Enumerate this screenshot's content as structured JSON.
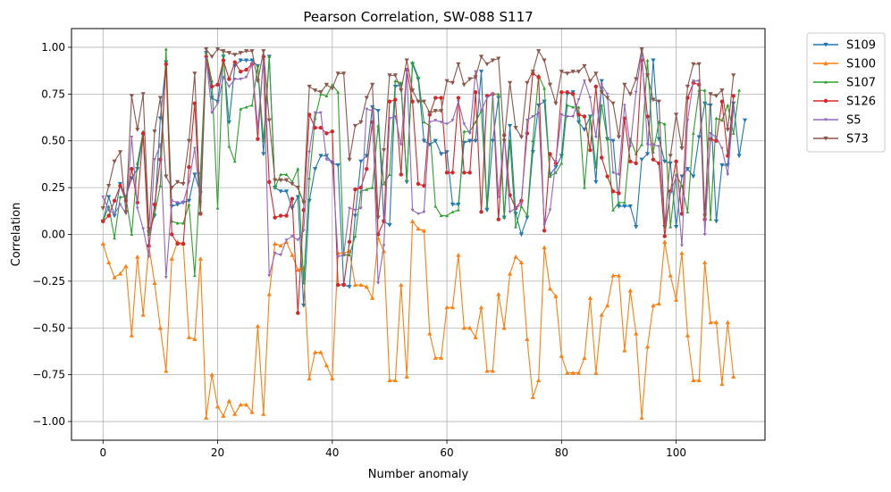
{
  "chart_data": {
    "type": "line",
    "title": "Pearson Correlation, SW-088  S117",
    "xlabel": "Number anomaly",
    "ylabel": "Correlation",
    "xlim": [
      -5.5,
      115.5
    ],
    "ylim": [
      -1.1,
      1.1
    ],
    "xticks": [
      0,
      20,
      40,
      60,
      80,
      100
    ],
    "yticks": [
      -1.0,
      -0.75,
      -0.5,
      -0.25,
      0.0,
      0.25,
      0.5,
      0.75,
      1.0
    ],
    "xtick_labels": [
      "0",
      "20",
      "40",
      "60",
      "80",
      "100"
    ],
    "ytick_labels": [
      "−1.00",
      "−0.75",
      "−0.50",
      "−0.25",
      "0.00",
      "0.25",
      "0.50",
      "0.75",
      "1.00"
    ],
    "grid": true,
    "legend_position": "outside-top-right",
    "series": [
      {
        "name": "S109",
        "color": "#1f77b4",
        "marker": "triangle-down",
        "values": [
          0.07,
          0.2,
          0.1,
          0.27,
          0.2,
          0.3,
          0.35,
          0.53,
          0.01,
          0.1,
          0.62,
          0.92,
          0.15,
          0.16,
          0.17,
          0.18,
          0.32,
          0.22,
          0.97,
          0.73,
          0.71,
          0.95,
          0.6,
          0.9,
          0.93,
          0.93,
          0.93,
          0.9,
          0.43,
          0.95,
          0.25,
          0.23,
          0.23,
          0.14,
          0.2,
          -0.38,
          0.18,
          0.35,
          0.42,
          0.42,
          0.38,
          0.37,
          -0.27,
          -0.28,
          0.1,
          0.39,
          0.42,
          0.68,
          0.66,
          0.07,
          0.05,
          0.79,
          0.8,
          0.28,
          0.91,
          0.83,
          0.5,
          0.48,
          0.5,
          0.43,
          0.44,
          0.16,
          0.16,
          0.49,
          0.5,
          0.5,
          0.87,
          0.13,
          0.5,
          0.73,
          0.09,
          0.58,
          0.11,
          0.0,
          0.09,
          0.44,
          0.69,
          0.71,
          0.32,
          0.36,
          0.42,
          0.75,
          0.76,
          0.6,
          0.56,
          0.63,
          0.28,
          0.82,
          0.51,
          0.5,
          0.15,
          0.15,
          0.15,
          0.04,
          0.4,
          0.43,
          0.93,
          0.51,
          0.39,
          0.38,
          0.04,
          0.31,
          0.35,
          0.31,
          0.52,
          0.7,
          0.69,
          0.07,
          0.37,
          0.37,
          0.7,
          0.42,
          0.61
        ]
      },
      {
        "name": "S100",
        "color": "#ff7f0e",
        "marker": "triangle-up",
        "values": [
          -0.05,
          -0.15,
          -0.23,
          -0.21,
          -0.17,
          -0.54,
          -0.12,
          -0.43,
          -0.06,
          -0.26,
          -0.5,
          -0.73,
          -0.13,
          -0.04,
          -0.05,
          -0.55,
          -0.56,
          -0.13,
          -0.98,
          -0.75,
          -0.92,
          -0.97,
          -0.89,
          -0.96,
          -0.91,
          -0.91,
          -0.95,
          -0.49,
          -0.96,
          -0.32,
          -0.05,
          -0.06,
          -0.04,
          -0.11,
          -0.19,
          -0.18,
          -0.77,
          -0.63,
          -0.63,
          -0.7,
          -0.77,
          -0.1,
          -0.1,
          -0.09,
          -0.27,
          -0.27,
          -0.28,
          -0.34,
          -0.02,
          -0.09,
          -0.78,
          -0.78,
          -0.27,
          -0.76,
          0.07,
          0.03,
          0.02,
          -0.53,
          -0.66,
          -0.66,
          -0.39,
          -0.39,
          -0.11,
          -0.5,
          -0.5,
          -0.55,
          -0.39,
          -0.73,
          -0.73,
          -0.32,
          -0.5,
          -0.21,
          -0.12,
          -0.15,
          -0.56,
          -0.87,
          -0.78,
          -0.07,
          -0.29,
          -0.33,
          -0.65,
          -0.74,
          -0.74,
          -0.74,
          -0.66,
          -0.34,
          -0.74,
          -0.43,
          -0.38,
          -0.22,
          -0.22,
          -0.62,
          -0.3,
          -0.53,
          -0.98,
          -0.6,
          -0.38,
          -0.37,
          -0.04,
          -0.22,
          -0.35,
          -0.1,
          -0.54,
          -0.78,
          -0.78,
          -0.15,
          -0.47,
          -0.47,
          -0.8,
          -0.47,
          -0.76
        ]
      },
      {
        "name": "S107",
        "color": "#2ca02c",
        "marker": "triangle-up-small",
        "values": [
          0.07,
          0.15,
          -0.02,
          0.2,
          0.2,
          0.0,
          0.38,
          0.55,
          0.0,
          0.11,
          0.26,
          0.99,
          0.07,
          0.06,
          0.06,
          0.16,
          -0.22,
          0.33,
          0.97,
          0.82,
          0.14,
          0.98,
          0.47,
          0.39,
          0.67,
          0.68,
          0.69,
          0.9,
          0.5,
          0.95,
          0.25,
          0.32,
          0.32,
          0.28,
          0.35,
          -0.26,
          0.3,
          0.62,
          0.75,
          0.74,
          0.8,
          0.76,
          -0.11,
          -0.11,
          -0.01,
          0.23,
          0.24,
          0.25,
          0.58,
          0.27,
          0.32,
          0.82,
          0.81,
          0.29,
          0.92,
          0.84,
          0.6,
          0.58,
          0.15,
          0.1,
          0.1,
          0.12,
          0.13,
          0.55,
          0.55,
          0.6,
          0.66,
          0.15,
          0.75,
          0.75,
          0.09,
          0.5,
          0.04,
          0.15,
          0.1,
          0.5,
          0.85,
          0.78,
          0.31,
          0.33,
          0.38,
          0.69,
          0.68,
          0.68,
          0.25,
          0.63,
          0.36,
          0.69,
          0.51,
          0.13,
          0.17,
          0.17,
          0.51,
          0.43,
          0.48,
          0.93,
          0.44,
          0.6,
          0.59,
          0.04,
          0.32,
          0.26,
          0.12,
          0.54,
          0.77,
          0.77,
          0.08,
          0.62,
          0.61,
          0.69,
          0.54,
          0.77
        ]
      },
      {
        "name": "S126",
        "color": "#d62728",
        "marker": "circle",
        "values": [
          0.07,
          0.1,
          0.18,
          0.26,
          0.18,
          0.35,
          0.17,
          0.54,
          -0.06,
          0.16,
          0.4,
          0.91,
          0.0,
          -0.05,
          -0.05,
          0.36,
          0.7,
          0.11,
          0.95,
          0.79,
          0.8,
          0.93,
          0.83,
          0.92,
          0.87,
          0.88,
          0.91,
          0.51,
          0.95,
          0.28,
          0.09,
          0.1,
          0.1,
          0.19,
          -0.42,
          0.13,
          0.64,
          0.57,
          0.57,
          0.54,
          0.55,
          -0.27,
          -0.27,
          -0.04,
          0.24,
          0.25,
          0.35,
          0.6,
          0.0,
          0.07,
          0.71,
          0.72,
          0.32,
          0.88,
          0.71,
          0.27,
          0.26,
          0.64,
          0.73,
          0.73,
          0.33,
          0.33,
          0.73,
          0.33,
          0.33,
          0.76,
          0.12,
          0.74,
          0.75,
          0.08,
          0.53,
          0.21,
          0.14,
          0.18,
          0.54,
          0.86,
          0.84,
          0.02,
          0.43,
          0.38,
          0.76,
          0.76,
          0.75,
          0.64,
          0.63,
          0.45,
          0.79,
          0.41,
          0.31,
          0.23,
          0.22,
          0.62,
          0.39,
          0.38,
          0.93,
          0.63,
          0.4,
          0.38,
          -0.01,
          0.23,
          0.39,
          0.11,
          0.73,
          0.81,
          0.8,
          0.08,
          0.51,
          0.5,
          0.71,
          0.42,
          0.74
        ]
      },
      {
        "name": "S5",
        "color": "#9467bd",
        "marker": "triangle-down-small",
        "values": [
          0.2,
          0.13,
          0.11,
          0.16,
          0.11,
          0.52,
          0.14,
          0.03,
          -0.12,
          0.4,
          0.48,
          -0.23,
          0.18,
          0.17,
          0.17,
          0.28,
          0.46,
          0.17,
          0.94,
          0.65,
          0.7,
          0.84,
          0.79,
          0.83,
          0.83,
          0.84,
          0.91,
          0.57,
          0.93,
          -0.22,
          -0.1,
          -0.11,
          -0.03,
          -0.01,
          -0.03,
          0.02,
          0.44,
          0.65,
          0.65,
          0.4,
          0.39,
          -0.12,
          -0.11,
          0.14,
          0.13,
          0.14,
          0.67,
          0.66,
          -0.26,
          -0.06,
          0.62,
          0.63,
          0.48,
          0.88,
          0.13,
          0.11,
          0.12,
          0.6,
          0.61,
          0.6,
          0.59,
          0.61,
          0.71,
          0.59,
          0.54,
          0.87,
          0.66,
          0.73,
          0.75,
          0.2,
          0.53,
          0.12,
          0.14,
          0.16,
          0.61,
          0.63,
          0.65,
          0.05,
          0.13,
          0.39,
          0.64,
          0.63,
          0.63,
          0.72,
          0.82,
          0.73,
          0.52,
          0.8,
          0.75,
          0.33,
          0.32,
          0.69,
          0.47,
          0.76,
          0.98,
          0.48,
          0.48,
          0.47,
          0.04,
          0.22,
          0.31,
          -0.06,
          0.61,
          0.82,
          0.82,
          0.0,
          0.54,
          0.52,
          0.46,
          0.32,
          0.67
        ]
      },
      {
        "name": "S73",
        "color": "#8c564b",
        "marker": "triangle-down",
        "values": [
          0.14,
          0.26,
          0.39,
          0.44,
          0.12,
          0.74,
          0.56,
          0.75,
          0.03,
          0.55,
          0.73,
          0.31,
          0.25,
          0.28,
          0.27,
          0.5,
          0.86,
          0.11,
          0.99,
          0.95,
          0.99,
          0.98,
          0.97,
          0.96,
          0.97,
          0.98,
          0.98,
          0.82,
          0.98,
          0.61,
          0.29,
          0.29,
          0.29,
          0.27,
          0.25,
          0.17,
          0.79,
          0.77,
          0.76,
          0.8,
          0.78,
          0.86,
          0.86,
          0.4,
          0.58,
          0.6,
          0.73,
          0.8,
          0.09,
          0.45,
          0.85,
          0.85,
          0.77,
          0.93,
          0.77,
          0.71,
          0.71,
          0.65,
          0.66,
          0.66,
          0.82,
          0.81,
          0.91,
          0.8,
          0.83,
          0.84,
          0.95,
          0.91,
          0.93,
          0.94,
          0.5,
          0.81,
          0.57,
          0.52,
          0.81,
          0.87,
          0.98,
          0.93,
          0.8,
          0.7,
          0.87,
          0.86,
          0.87,
          0.87,
          0.9,
          0.82,
          0.86,
          0.76,
          0.73,
          0.7,
          0.52,
          0.8,
          0.75,
          0.83,
          0.99,
          0.85,
          0.72,
          0.71,
          0.04,
          0.42,
          0.64,
          0.46,
          0.79,
          0.91,
          0.91,
          0.1,
          0.75,
          0.74,
          0.77,
          0.56,
          0.85
        ]
      }
    ]
  }
}
